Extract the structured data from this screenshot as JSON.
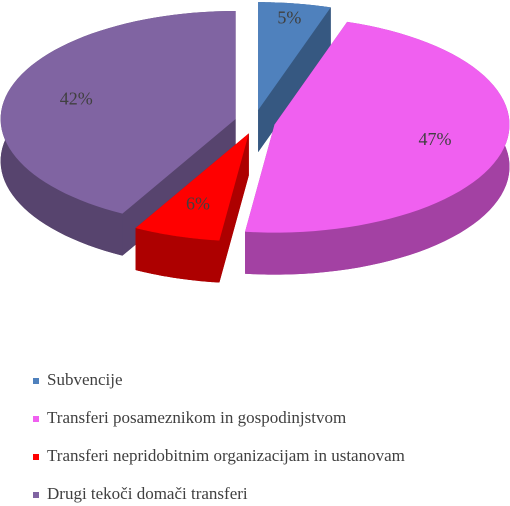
{
  "chart_data": {
    "type": "pie",
    "categories": [
      "Subvencije",
      "Transferi posameznikom in gospodinjstvom",
      "Transferi nepridobitnim organizacijam in ustanovam",
      "Drugi tekoči domači transferi"
    ],
    "values": [
      5,
      47,
      6,
      42
    ],
    "value_labels": [
      "5%",
      "47%",
      "6%",
      "42%"
    ],
    "colors": [
      "#4f81bd",
      "#f060f0",
      "#ff0000",
      "#8064a2"
    ],
    "legend": "bottom"
  }
}
